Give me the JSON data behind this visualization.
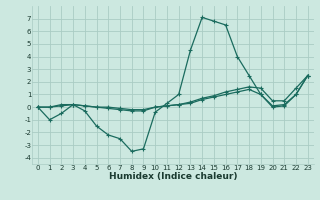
{
  "xlabel": "Humidex (Indice chaleur)",
  "background_color": "#cce8e0",
  "grid_color": "#aaccc4",
  "line_color": "#1a6b5e",
  "xlim": [
    -0.5,
    23.5
  ],
  "ylim": [
    -4.5,
    8.0
  ],
  "xticks": [
    0,
    1,
    2,
    3,
    4,
    5,
    6,
    7,
    8,
    9,
    10,
    11,
    12,
    13,
    14,
    15,
    16,
    17,
    18,
    19,
    20,
    21,
    22,
    23
  ],
  "yticks": [
    -4,
    -3,
    -2,
    -1,
    0,
    1,
    2,
    3,
    4,
    5,
    6,
    7
  ],
  "series1_x": [
    0,
    1,
    2,
    3,
    4,
    5,
    6,
    7,
    8,
    9,
    10,
    11,
    12,
    13,
    14,
    15,
    16,
    17,
    18,
    19,
    20,
    21,
    22,
    23
  ],
  "series1_y": [
    0.0,
    -1.0,
    -0.5,
    0.2,
    -0.3,
    -1.5,
    -2.2,
    -2.5,
    -3.5,
    -3.3,
    -0.4,
    0.3,
    1.0,
    4.5,
    7.1,
    6.8,
    6.5,
    4.0,
    2.5,
    1.0,
    0.1,
    0.2,
    1.0,
    2.5
  ],
  "series2_x": [
    0,
    1,
    2,
    3,
    4,
    5,
    6,
    7,
    8,
    9,
    10,
    11,
    12,
    13,
    14,
    15,
    16,
    17,
    18,
    19,
    20,
    21,
    22,
    23
  ],
  "series2_y": [
    0.0,
    0.0,
    0.2,
    0.2,
    0.1,
    0.0,
    0.0,
    -0.1,
    -0.2,
    -0.2,
    0.0,
    0.1,
    0.2,
    0.4,
    0.7,
    0.9,
    1.2,
    1.4,
    1.6,
    1.5,
    0.5,
    0.5,
    1.5,
    2.5
  ],
  "series3_x": [
    0,
    1,
    2,
    3,
    4,
    5,
    6,
    7,
    8,
    9,
    10,
    11,
    12,
    13,
    14,
    15,
    16,
    17,
    18,
    19,
    20,
    21,
    22,
    23
  ],
  "series3_y": [
    0.0,
    0.0,
    0.1,
    0.2,
    0.1,
    0.0,
    -0.1,
    -0.2,
    -0.3,
    -0.3,
    0.0,
    0.1,
    0.2,
    0.3,
    0.6,
    0.8,
    1.0,
    1.2,
    1.4,
    1.0,
    0.0,
    0.1,
    1.0,
    2.5
  ],
  "xlabel_fontsize": 6.5,
  "tick_fontsize": 5.0
}
